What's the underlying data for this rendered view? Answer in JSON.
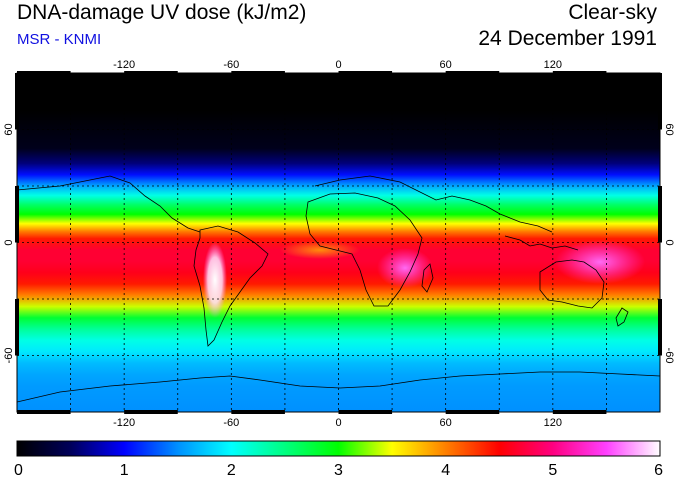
{
  "header": {
    "title": "DNA-damage UV dose (kJ/m2)",
    "subtitle": "MSR - KNMI",
    "condition": "Clear-sky",
    "date": "24 December 1991"
  },
  "map": {
    "projection": "equirectangular",
    "lon_range": [
      -180,
      180
    ],
    "lat_range": [
      -90,
      90
    ],
    "lon_ticks": [
      {
        "value": -120,
        "label": "-120"
      },
      {
        "value": -60,
        "label": "-60"
      },
      {
        "value": 0,
        "label": "0"
      },
      {
        "value": 60,
        "label": "60"
      },
      {
        "value": 120,
        "label": "120"
      }
    ],
    "lat_ticks": [
      {
        "value": 60,
        "label": "60"
      },
      {
        "value": 0,
        "label": "0"
      },
      {
        "value": -60,
        "label": "-60"
      }
    ],
    "graticule_lon": [
      -150,
      -120,
      -90,
      -60,
      -30,
      0,
      30,
      60,
      90,
      120,
      150
    ],
    "graticule_lat": [
      60,
      30,
      0,
      -30,
      -60
    ]
  },
  "colorbar": {
    "min": 0,
    "max": 6,
    "ticks": [
      "0",
      "1",
      "2",
      "3",
      "4",
      "5",
      "6"
    ],
    "stops": [
      {
        "value": 0.0,
        "color": "#000000"
      },
      {
        "value": 0.5,
        "color": "#00005a"
      },
      {
        "value": 1.0,
        "color": "#0000ff"
      },
      {
        "value": 1.5,
        "color": "#0090ff"
      },
      {
        "value": 2.0,
        "color": "#00ffff"
      },
      {
        "value": 2.5,
        "color": "#00ff80"
      },
      {
        "value": 3.0,
        "color": "#00ff00"
      },
      {
        "value": 3.5,
        "color": "#ffff00"
      },
      {
        "value": 4.0,
        "color": "#ff8000"
      },
      {
        "value": 4.5,
        "color": "#ff0000"
      },
      {
        "value": 5.0,
        "color": "#ff0080"
      },
      {
        "value": 5.5,
        "color": "#ff40ff"
      },
      {
        "value": 6.0,
        "color": "#ffffff"
      }
    ]
  },
  "zonal_profile": {
    "lat": [
      90,
      70,
      50,
      42,
      36,
      30,
      25,
      20,
      15,
      10,
      6,
      2,
      -4,
      -10,
      -16,
      -22,
      -28,
      -34,
      -40,
      -46,
      -52,
      -58,
      -64,
      -70,
      -76,
      -90
    ],
    "dose": [
      0.0,
      0.0,
      0.15,
      0.6,
      1.05,
      1.6,
      2.1,
      2.6,
      3.0,
      3.5,
      4.0,
      4.4,
      4.7,
      4.7,
      4.6,
      4.4,
      4.0,
      3.4,
      2.8,
      2.4,
      2.1,
      1.9,
      1.7,
      1.6,
      1.55,
      1.5
    ]
  }
}
